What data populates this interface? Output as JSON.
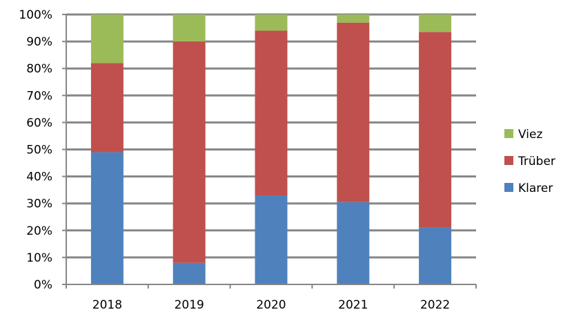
{
  "chart_data": {
    "type": "bar",
    "stacked": true,
    "percent": true,
    "title": "",
    "xlabel": "",
    "ylabel": "",
    "categories": [
      "2018",
      "2019",
      "2020",
      "2021",
      "2022"
    ],
    "series": [
      {
        "name": "Klarer",
        "color": "#4F81BD",
        "values": [
          49,
          8,
          33,
          30.5,
          21
        ]
      },
      {
        "name": "Trüber",
        "color": "#C0504D",
        "values": [
          33,
          82,
          61,
          66.5,
          72.5
        ]
      },
      {
        "name": "Viez",
        "color": "#9BBB59",
        "values": [
          18,
          10,
          6,
          3,
          6.5
        ]
      }
    ],
    "ylim": [
      0,
      100
    ],
    "yticks": [
      0,
      10,
      20,
      30,
      40,
      50,
      60,
      70,
      80,
      90,
      100
    ],
    "ytick_labels": [
      "0%",
      "10%",
      "20%",
      "30%",
      "40%",
      "50%",
      "60%",
      "70%",
      "80%",
      "90%",
      "100%"
    ],
    "grid": true,
    "legend_position": "right",
    "legend_order": [
      "Viez",
      "Trüber",
      "Klarer"
    ],
    "gridline_color": "#868686",
    "axis_color": "#868686"
  }
}
